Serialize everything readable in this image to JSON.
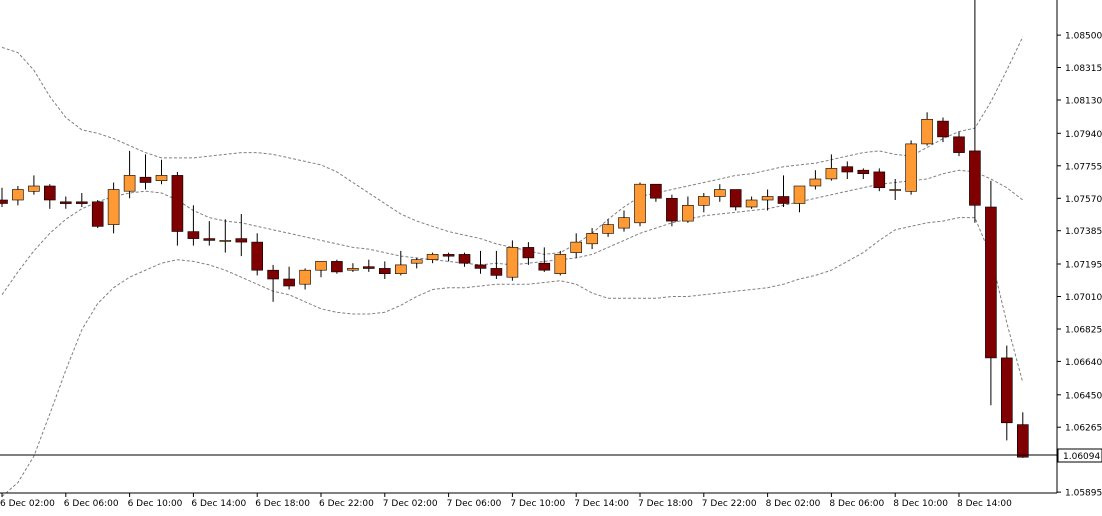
{
  "chart_data": {
    "type": "candlestick",
    "ylim": [
      1.0589,
      1.087
    ],
    "y_ticks": [
      "1.08500",
      "1.08315",
      "1.08130",
      "1.07940",
      "1.07755",
      "1.07570",
      "1.07385",
      "1.07195",
      "1.07010",
      "1.06825",
      "1.06640",
      "1.06450",
      "1.06265",
      "1.05895"
    ],
    "x_ticks": [
      "6 Dec 02:00",
      "6 Dec 06:00",
      "6 Dec 10:00",
      "6 Dec 14:00",
      "6 Dec 18:00",
      "6 Dec 22:00",
      "7 Dec 02:00",
      "7 Dec 06:00",
      "7 Dec 10:00",
      "7 Dec 14:00",
      "7 Dec 18:00",
      "7 Dec 22:00",
      "8 Dec 02:00",
      "8 Dec 06:00",
      "8 Dec 10:00",
      "8 Dec 14:00"
    ],
    "current_price": "1.06094",
    "colors": {
      "bull": "#ff9933",
      "bear": "#7f0000",
      "band": "#808080",
      "axis": "#000000"
    },
    "candles": [
      {
        "o": 1.0756,
        "h": 1.0763,
        "l": 1.0752,
        "c": 1.0754
      },
      {
        "o": 1.0756,
        "h": 1.0764,
        "l": 1.0753,
        "c": 1.0762
      },
      {
        "o": 1.0761,
        "h": 1.077,
        "l": 1.0759,
        "c": 1.0764
      },
      {
        "o": 1.0764,
        "h": 1.0765,
        "l": 1.0751,
        "c": 1.0756
      },
      {
        "o": 1.0755,
        "h": 1.0758,
        "l": 1.0751,
        "c": 1.0754
      },
      {
        "o": 1.0755,
        "h": 1.076,
        "l": 1.0752,
        "c": 1.0754
      },
      {
        "o": 1.0755,
        "h": 1.0756,
        "l": 1.074,
        "c": 1.0741
      },
      {
        "o": 1.0742,
        "h": 1.0766,
        "l": 1.0737,
        "c": 1.0762
      },
      {
        "o": 1.0761,
        "h": 1.0784,
        "l": 1.0757,
        "c": 1.077
      },
      {
        "o": 1.0769,
        "h": 1.0782,
        "l": 1.0762,
        "c": 1.0766
      },
      {
        "o": 1.0767,
        "h": 1.0779,
        "l": 1.0765,
        "c": 1.077
      },
      {
        "o": 1.077,
        "h": 1.0772,
        "l": 1.073,
        "c": 1.0738
      },
      {
        "o": 1.0738,
        "h": 1.0753,
        "l": 1.073,
        "c": 1.0734
      },
      {
        "o": 1.0734,
        "h": 1.0744,
        "l": 1.073,
        "c": 1.0733
      },
      {
        "o": 1.0733,
        "h": 1.0745,
        "l": 1.0726,
        "c": 1.0733
      },
      {
        "o": 1.0734,
        "h": 1.0748,
        "l": 1.0724,
        "c": 1.0732
      },
      {
        "o": 1.0732,
        "h": 1.0737,
        "l": 1.0713,
        "c": 1.0716
      },
      {
        "o": 1.0716,
        "h": 1.0719,
        "l": 1.0698,
        "c": 1.0711
      },
      {
        "o": 1.0711,
        "h": 1.0718,
        "l": 1.0705,
        "c": 1.0707
      },
      {
        "o": 1.0708,
        "h": 1.0717,
        "l": 1.0705,
        "c": 1.0716
      },
      {
        "o": 1.0716,
        "h": 1.0721,
        "l": 1.0712,
        "c": 1.0721
      },
      {
        "o": 1.0721,
        "h": 1.0722,
        "l": 1.0714,
        "c": 1.0715
      },
      {
        "o": 1.0716,
        "h": 1.072,
        "l": 1.0715,
        "c": 1.0717
      },
      {
        "o": 1.0718,
        "h": 1.0722,
        "l": 1.0715,
        "c": 1.0717
      },
      {
        "o": 1.0717,
        "h": 1.0721,
        "l": 1.0711,
        "c": 1.0714
      },
      {
        "o": 1.0714,
        "h": 1.0727,
        "l": 1.0713,
        "c": 1.0719
      },
      {
        "o": 1.072,
        "h": 1.0723,
        "l": 1.0717,
        "c": 1.0722
      },
      {
        "o": 1.0722,
        "h": 1.0726,
        "l": 1.072,
        "c": 1.0725
      },
      {
        "o": 1.0725,
        "h": 1.0726,
        "l": 1.0721,
        "c": 1.0724
      },
      {
        "o": 1.0725,
        "h": 1.0726,
        "l": 1.0718,
        "c": 1.072
      },
      {
        "o": 1.0719,
        "h": 1.0727,
        "l": 1.0714,
        "c": 1.0717
      },
      {
        "o": 1.0717,
        "h": 1.0727,
        "l": 1.0711,
        "c": 1.0713
      },
      {
        "o": 1.0712,
        "h": 1.0733,
        "l": 1.071,
        "c": 1.0729
      },
      {
        "o": 1.0729,
        "h": 1.0732,
        "l": 1.0719,
        "c": 1.0723
      },
      {
        "o": 1.072,
        "h": 1.0729,
        "l": 1.0715,
        "c": 1.0716
      },
      {
        "o": 1.0714,
        "h": 1.0727,
        "l": 1.0713,
        "c": 1.0725
      },
      {
        "o": 1.0726,
        "h": 1.0737,
        "l": 1.0723,
        "c": 1.0732
      },
      {
        "o": 1.0731,
        "h": 1.074,
        "l": 1.0728,
        "c": 1.0737
      },
      {
        "o": 1.0737,
        "h": 1.0745,
        "l": 1.0735,
        "c": 1.0742
      },
      {
        "o": 1.074,
        "h": 1.075,
        "l": 1.0738,
        "c": 1.0746
      },
      {
        "o": 1.0743,
        "h": 1.0766,
        "l": 1.0741,
        "c": 1.0765
      },
      {
        "o": 1.0765,
        "h": 1.0765,
        "l": 1.0755,
        "c": 1.0757
      },
      {
        "o": 1.0757,
        "h": 1.0759,
        "l": 1.0741,
        "c": 1.0744
      },
      {
        "o": 1.0744,
        "h": 1.0758,
        "l": 1.0743,
        "c": 1.0753
      },
      {
        "o": 1.0753,
        "h": 1.076,
        "l": 1.0749,
        "c": 1.0758
      },
      {
        "o": 1.0758,
        "h": 1.0765,
        "l": 1.0755,
        "c": 1.0762
      },
      {
        "o": 1.0762,
        "h": 1.0762,
        "l": 1.075,
        "c": 1.0752
      },
      {
        "o": 1.0752,
        "h": 1.0758,
        "l": 1.0751,
        "c": 1.0756
      },
      {
        "o": 1.0756,
        "h": 1.0762,
        "l": 1.075,
        "c": 1.0758
      },
      {
        "o": 1.0758,
        "h": 1.077,
        "l": 1.0752,
        "c": 1.0754
      },
      {
        "o": 1.0754,
        "h": 1.0764,
        "l": 1.0749,
        "c": 1.0764
      },
      {
        "o": 1.0764,
        "h": 1.0773,
        "l": 1.0762,
        "c": 1.0768
      },
      {
        "o": 1.0768,
        "h": 1.0782,
        "l": 1.0767,
        "c": 1.0774
      },
      {
        "o": 1.0775,
        "h": 1.0778,
        "l": 1.0768,
        "c": 1.0772
      },
      {
        "o": 1.0773,
        "h": 1.0774,
        "l": 1.0768,
        "c": 1.0771
      },
      {
        "o": 1.0772,
        "h": 1.0774,
        "l": 1.0761,
        "c": 1.0763
      },
      {
        "o": 1.0762,
        "h": 1.0768,
        "l": 1.0756,
        "c": 1.0762
      },
      {
        "o": 1.0761,
        "h": 1.079,
        "l": 1.0759,
        "c": 1.0788
      },
      {
        "o": 1.0788,
        "h": 1.0806,
        "l": 1.0787,
        "c": 1.0802
      },
      {
        "o": 1.0801,
        "h": 1.0803,
        "l": 1.0789,
        "c": 1.0792
      },
      {
        "o": 1.0792,
        "h": 1.0795,
        "l": 1.0781,
        "c": 1.0783
      },
      {
        "o": 1.0784,
        "h": 1.0887,
        "l": 1.0743,
        "c": 1.0753
      },
      {
        "o": 1.0752,
        "h": 1.0767,
        "l": 1.0639,
        "c": 1.0666
      },
      {
        "o": 1.0666,
        "h": 1.0673,
        "l": 1.0619,
        "c": 1.0629
      },
      {
        "o": 1.0628,
        "h": 1.0635,
        "l": 1.0609,
        "c": 1.06094
      }
    ],
    "bands": {
      "upper": [
        1.0843,
        1.084,
        1.083,
        1.0815,
        1.0803,
        1.0796,
        1.0794,
        1.0791,
        1.0787,
        1.0783,
        1.078,
        1.078,
        1.078,
        1.0781,
        1.0782,
        1.0783,
        1.0783,
        1.0782,
        1.078,
        1.0778,
        1.0776,
        1.0772,
        1.0766,
        1.076,
        1.0754,
        1.0748,
        1.0744,
        1.0741,
        1.0738,
        1.0736,
        1.0734,
        1.0731,
        1.0729,
        1.0727,
        1.0725,
        1.0726,
        1.0731,
        1.0737,
        1.0745,
        1.0752,
        1.0758,
        1.076,
        1.0762,
        1.0764,
        1.0766,
        1.0768,
        1.077,
        1.0771,
        1.0773,
        1.0775,
        1.0776,
        1.0777,
        1.0779,
        1.0781,
        1.0783,
        1.0784,
        1.0782,
        1.0781,
        1.0786,
        1.0791,
        1.0795,
        1.0797,
        1.0812,
        1.083,
        1.0849
      ],
      "middle": [
        1.0702,
        1.0715,
        1.0727,
        1.0737,
        1.0745,
        1.0751,
        1.0755,
        1.0758,
        1.076,
        1.0761,
        1.076,
        1.0756,
        1.075,
        1.0746,
        1.0744,
        1.0743,
        1.0741,
        1.0739,
        1.0737,
        1.0735,
        1.0733,
        1.0731,
        1.0729,
        1.0728,
        1.0726,
        1.0724,
        1.0723,
        1.0722,
        1.0721,
        1.072,
        1.0719,
        1.072,
        1.0719,
        1.072,
        1.0721,
        1.0722,
        1.0723,
        1.0725,
        1.0729,
        1.0733,
        1.0737,
        1.074,
        1.0743,
        1.0745,
        1.0747,
        1.0748,
        1.0749,
        1.075,
        1.0751,
        1.0753,
        1.0755,
        1.0757,
        1.0759,
        1.0761,
        1.0763,
        1.0765,
        1.0766,
        1.0767,
        1.0768,
        1.0771,
        1.0773,
        1.0772,
        1.0768,
        1.0763,
        1.0756
      ],
      "lower": [
        1.0587,
        1.0595,
        1.061,
        1.0634,
        1.0659,
        1.0682,
        1.0697,
        1.0706,
        1.0712,
        1.0716,
        1.072,
        1.0722,
        1.0721,
        1.0719,
        1.0716,
        1.0712,
        1.0708,
        1.0704,
        1.0702,
        1.0698,
        1.0694,
        1.0692,
        1.0691,
        1.0691,
        1.0692,
        1.0696,
        1.0701,
        1.0705,
        1.0706,
        1.0706,
        1.0707,
        1.0708,
        1.0708,
        1.0708,
        1.0709,
        1.071,
        1.0708,
        1.0703,
        1.07,
        1.07,
        1.07,
        1.07,
        1.0701,
        1.0701,
        1.0702,
        1.0703,
        1.0704,
        1.0705,
        1.0706,
        1.0708,
        1.0711,
        1.0713,
        1.0716,
        1.0721,
        1.0726,
        1.0733,
        1.0739,
        1.0741,
        1.0743,
        1.0744,
        1.0746,
        1.0746,
        1.0724,
        1.0686,
        1.0652
      ]
    }
  }
}
